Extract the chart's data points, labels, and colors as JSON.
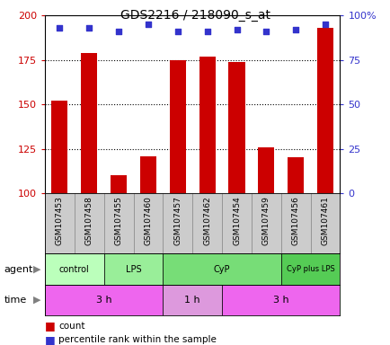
{
  "title": "GDS2216 / 218090_s_at",
  "samples": [
    "GSM107453",
    "GSM107458",
    "GSM107455",
    "GSM107460",
    "GSM107457",
    "GSM107462",
    "GSM107454",
    "GSM107459",
    "GSM107456",
    "GSM107461"
  ],
  "counts": [
    152,
    179,
    110,
    121,
    175,
    177,
    174,
    126,
    120,
    193
  ],
  "percentiles": [
    93,
    93,
    91,
    95,
    91,
    91,
    92,
    91,
    92,
    95
  ],
  "ylim_left": [
    100,
    200
  ],
  "ylim_right": [
    0,
    100
  ],
  "yticks_left": [
    100,
    125,
    150,
    175,
    200
  ],
  "yticks_right": [
    0,
    25,
    50,
    75,
    100
  ],
  "ytick_right_labels": [
    "0",
    "25",
    "50",
    "75",
    "100%"
  ],
  "bar_color": "#cc0000",
  "dot_color": "#3333cc",
  "agent_groups": [
    {
      "label": "control",
      "start": 0,
      "end": 2,
      "color": "#bbffbb"
    },
    {
      "label": "LPS",
      "start": 2,
      "end": 4,
      "color": "#99ee99"
    },
    {
      "label": "CyP",
      "start": 4,
      "end": 8,
      "color": "#77dd77"
    },
    {
      "label": "CyP plus LPS",
      "start": 8,
      "end": 10,
      "color": "#55cc55"
    }
  ],
  "time_groups": [
    {
      "label": "3 h",
      "start": 0,
      "end": 4,
      "color": "#ee66ee"
    },
    {
      "label": "1 h",
      "start": 4,
      "end": 6,
      "color": "#dd99dd"
    },
    {
      "label": "3 h",
      "start": 6,
      "end": 10,
      "color": "#ee66ee"
    }
  ],
  "left_label_color": "#cc0000",
  "right_label_color": "#3333cc",
  "sample_bg_color": "#cccccc",
  "grid_linestyle": ":",
  "grid_color": "black",
  "grid_linewidth": 0.8,
  "grid_yticks": [
    125,
    150,
    175
  ]
}
